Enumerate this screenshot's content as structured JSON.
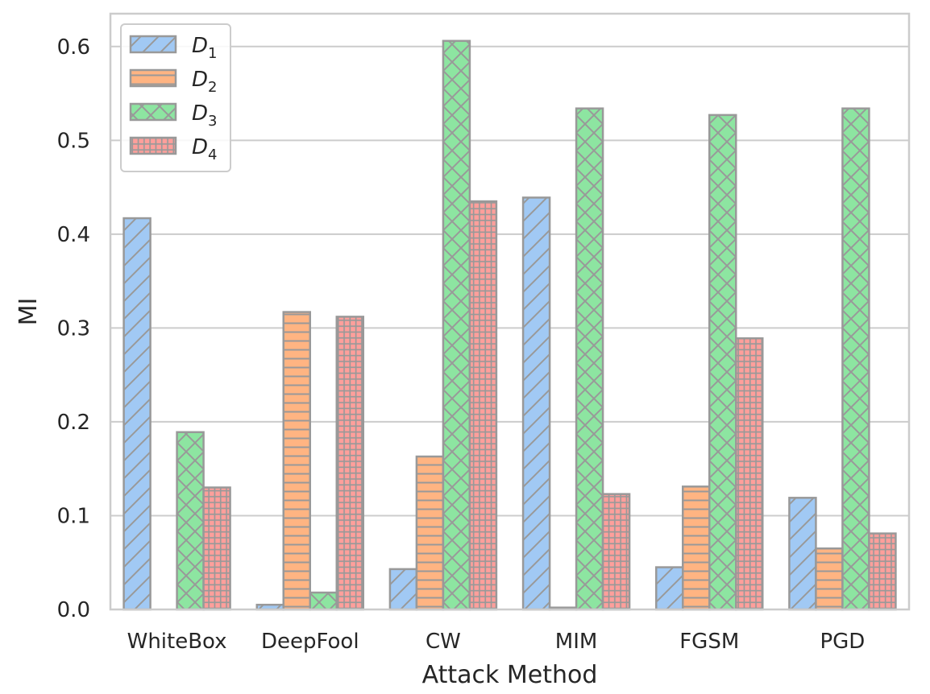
{
  "chart_data": {
    "type": "bar",
    "title": "",
    "xlabel": "Attack Method",
    "ylabel": "MI",
    "ylim": [
      0,
      0.635
    ],
    "yticks": [
      0.0,
      0.1,
      0.2,
      0.3,
      0.4,
      0.5,
      0.6
    ],
    "ytick_labels": [
      "0.0",
      "0.1",
      "0.2",
      "0.3",
      "0.4",
      "0.5",
      "0.6"
    ],
    "grid": true,
    "legend_position": "top-left",
    "categories": [
      "WhiteBox",
      "DeepFool",
      "CW",
      "MIM",
      "FGSM",
      "PGD"
    ],
    "series": [
      {
        "name": "D",
        "subscript": "1",
        "color": "#a1c9f4",
        "hatch": "diagonal",
        "values": [
          0.417,
          0.005,
          0.043,
          0.439,
          0.045,
          0.119
        ]
      },
      {
        "name": "D",
        "subscript": "2",
        "color": "#ffb482",
        "hatch": "horizontal",
        "values": [
          0.0,
          0.317,
          0.163,
          0.002,
          0.131,
          0.065
        ]
      },
      {
        "name": "D",
        "subscript": "3",
        "color": "#8de5a1",
        "hatch": "cross",
        "values": [
          0.189,
          0.018,
          0.606,
          0.534,
          0.527,
          0.534
        ]
      },
      {
        "name": "D",
        "subscript": "4",
        "color": "#ff9f9b",
        "hatch": "grid",
        "values": [
          0.13,
          0.312,
          0.435,
          0.123,
          0.289,
          0.081
        ]
      }
    ],
    "colors": {
      "edge": "#999999",
      "grid": "#cccccc",
      "frame": "#cccccc",
      "text": "#262626"
    }
  }
}
